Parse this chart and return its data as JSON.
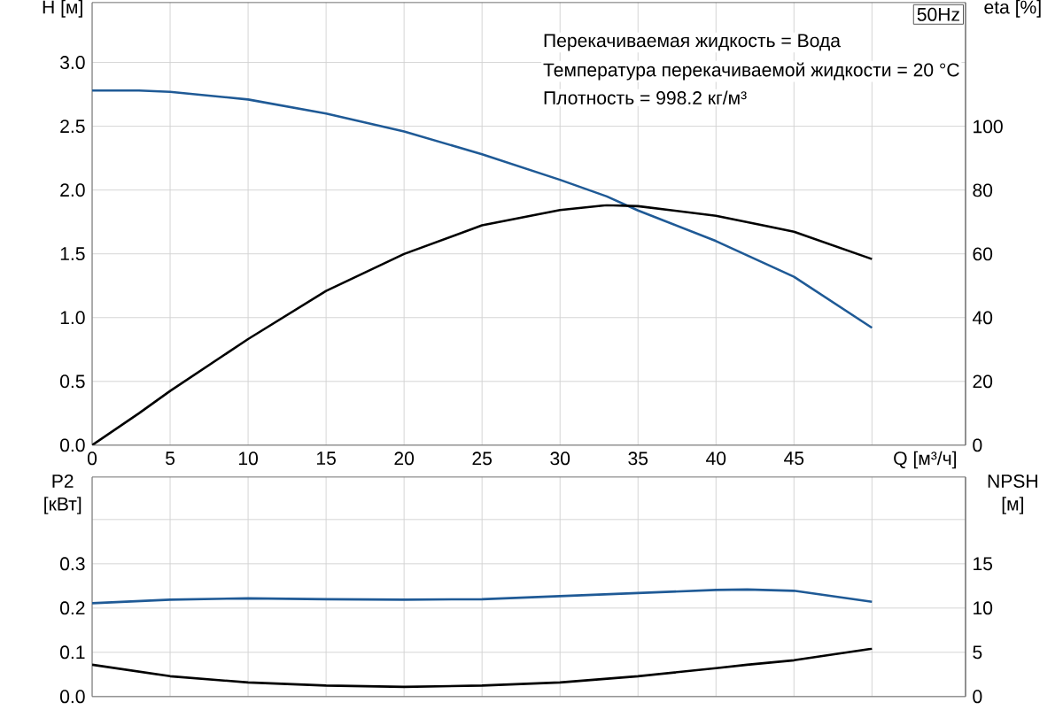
{
  "chart_data": [
    {
      "type": "line",
      "xlabel": "Q [м³/ч]",
      "ylabel": "H [м]",
      "y2label": "eta [%]",
      "grid": true,
      "x": [
        0,
        3,
        5,
        10,
        15,
        20,
        25,
        30,
        33,
        35,
        40,
        45,
        50
      ],
      "xlim": [
        0,
        56
      ],
      "xticks": [
        0,
        5,
        10,
        15,
        20,
        25,
        30,
        35,
        40,
        45,
        {
          "value": 50,
          "label": null
        }
      ],
      "ylim": [
        0,
        3.47
      ],
      "yticks": [
        {
          "value": 0,
          "label": "0.0"
        },
        {
          "value": 0.5,
          "label": "0.5"
        },
        {
          "value": 1,
          "label": "1.0"
        },
        {
          "value": 1.5,
          "label": "1.5"
        },
        {
          "value": 2,
          "label": "2.0"
        },
        {
          "value": 2.5,
          "label": "2.5"
        },
        {
          "value": 3,
          "label": "3.0"
        }
      ],
      "y2lim": [
        0,
        138.9
      ],
      "y2ticks": [
        0,
        20,
        40,
        60,
        80,
        100
      ],
      "annotations": [
        "50Hz",
        "Перекачиваемая жидкость = Вода",
        "Температура перекачиваемой жидкости = 20 °C",
        "Плотность = 998.2 кг/м³"
      ],
      "series": [
        {
          "color": "#1f5a96",
          "axis": "y",
          "values": [
            2.78,
            2.78,
            2.77,
            2.71,
            2.6,
            2.46,
            2.28,
            2.08,
            1.95,
            1.84,
            1.6,
            1.32,
            0.92
          ]
        },
        {
          "color": "#000000",
          "axis": "y2",
          "values": [
            0,
            10,
            17,
            33.3,
            48.4,
            60,
            69,
            73.8,
            75.3,
            75,
            72,
            67,
            58.4
          ]
        }
      ]
    },
    {
      "type": "line",
      "ylabel": "P2 [кВт]",
      "y2label": "NPSH [м]",
      "grid": true,
      "tick_labels": "y",
      "x": [
        0,
        5,
        10,
        15,
        20,
        25,
        30,
        35,
        40,
        42,
        45,
        50
      ],
      "xlim": [
        0,
        56
      ],
      "xticks": [
        0,
        5,
        10,
        15,
        20,
        25,
        30,
        35,
        40,
        45,
        50
      ],
      "ylim": [
        0,
        0.496
      ],
      "yticks": [
        {
          "value": 0,
          "label": "0.0"
        },
        {
          "value": 0.1,
          "label": "0.1"
        },
        {
          "value": 0.2,
          "label": "0.2"
        },
        {
          "value": 0.3,
          "label": "0.3"
        },
        {
          "value": 0.4,
          "label": null
        }
      ],
      "y2lim": [
        0,
        24.8
      ],
      "y2ticks": [
        0,
        5,
        10,
        15
      ],
      "series": [
        {
          "color": "#1f5a96",
          "axis": "y",
          "values": [
            0.211,
            0.219,
            0.222,
            0.22,
            0.219,
            0.22,
            0.227,
            0.234,
            0.241,
            0.242,
            0.239,
            0.214
          ]
        },
        {
          "color": "#000000",
          "axis": "y2",
          "values": [
            3.6,
            2.3,
            1.6,
            1.25,
            1.1,
            1.25,
            1.6,
            2.3,
            3.2,
            3.6,
            4.1,
            5.4
          ]
        }
      ]
    }
  ]
}
